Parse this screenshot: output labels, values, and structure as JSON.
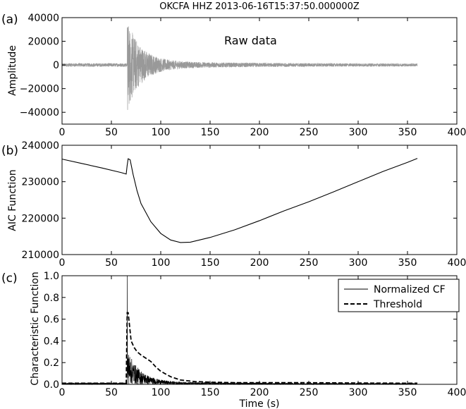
{
  "figure_title": "OKCFA HHZ 2013-06-16T15:37:50.000000Z",
  "chart_data": [
    {
      "panel": "(a)",
      "type": "line",
      "title": "OKCFA HHZ 2013-06-16T15:37:50.000000Z",
      "annotation": "Raw data",
      "xlabel": "",
      "ylabel": "Amplitude",
      "xlim": [
        0,
        400
      ],
      "ylim": [
        -50000,
        40000
      ],
      "xticks": [
        0,
        50,
        100,
        150,
        200,
        250,
        300,
        350,
        400
      ],
      "yticks": [
        -40000,
        -20000,
        0,
        20000,
        40000
      ],
      "series_color": "#999999",
      "onset_time_s": 66,
      "end_time_s": 360,
      "noise_amplitude": 1500,
      "peak_amplitude": 35000,
      "trough_amplitude": -42000
    },
    {
      "panel": "(b)",
      "type": "line",
      "xlabel": "",
      "ylabel": "AIC Function",
      "xlim": [
        0,
        400
      ],
      "ylim": [
        210000,
        240000
      ],
      "xticks": [
        0,
        50,
        100,
        150,
        200,
        250,
        300,
        350,
        400
      ],
      "yticks": [
        210000,
        220000,
        230000,
        240000
      ],
      "series_color": "#000000",
      "x": [
        0,
        20,
        40,
        60,
        65,
        66,
        67,
        69,
        72,
        76,
        80,
        90,
        100,
        110,
        120,
        130,
        150,
        175,
        200,
        225,
        250,
        275,
        300,
        325,
        350,
        360
      ],
      "y": [
        236200,
        235000,
        233800,
        232500,
        232100,
        234500,
        236300,
        236000,
        232000,
        227500,
        224000,
        219000,
        215800,
        214000,
        213300,
        213400,
        214700,
        216800,
        219300,
        222000,
        224500,
        227200,
        230000,
        232800,
        235300,
        236400
      ]
    },
    {
      "panel": "(c)",
      "type": "line",
      "xlabel": "Time (s)",
      "ylabel": "Characteristic Function",
      "xlim": [
        0,
        400
      ],
      "ylim": [
        0,
        1.0
      ],
      "xticks": [
        0,
        50,
        100,
        150,
        200,
        250,
        300,
        350,
        400
      ],
      "yticks": [
        0.0,
        0.2,
        0.4,
        0.6,
        0.8,
        1.0
      ],
      "legend_position": "top-right",
      "series": [
        {
          "name": "Normalized CF",
          "style": "solid",
          "color": "#000000",
          "spike_time_s": 66,
          "spike_value": 1.0,
          "coda_start_value": 0.3,
          "end_time_s": 360
        },
        {
          "name": "Threshold",
          "style": "dashed",
          "color": "#000000",
          "x": [
            0,
            65,
            66,
            67,
            70,
            73,
            76,
            80,
            85,
            90,
            95,
            100,
            110,
            120,
            135,
            150,
            175,
            200,
            250,
            300,
            360
          ],
          "y": [
            0.01,
            0.01,
            0.66,
            0.66,
            0.4,
            0.34,
            0.3,
            0.27,
            0.24,
            0.21,
            0.16,
            0.12,
            0.07,
            0.04,
            0.025,
            0.02,
            0.015,
            0.015,
            0.015,
            0.012,
            0.01
          ]
        }
      ]
    }
  ],
  "tick_labels": {
    "x": [
      "0",
      "50",
      "100",
      "150",
      "200",
      "250",
      "300",
      "350",
      "400"
    ],
    "a_y": [
      "40000",
      "20000",
      "0",
      "−20000",
      "−40000"
    ],
    "b_y": [
      "240000",
      "230000",
      "220000",
      "210000"
    ],
    "c_y": [
      "1.0",
      "0.8",
      "0.6",
      "0.4",
      "0.2",
      "0.0"
    ]
  }
}
